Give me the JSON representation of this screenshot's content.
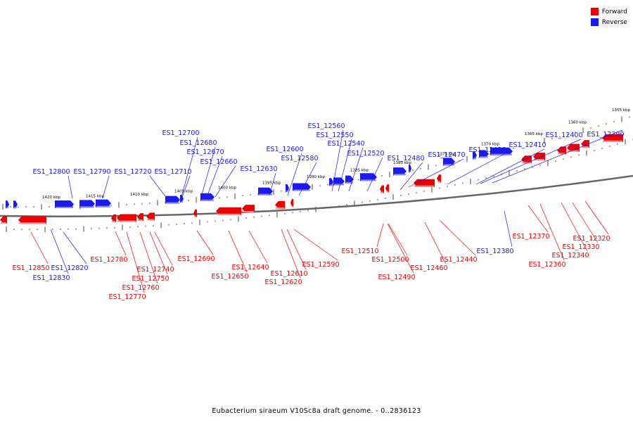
{
  "colors": {
    "forward": "#ee0000",
    "reverse": "#1a1aee",
    "axis": "#666666"
  },
  "legend": [
    {
      "label": "Forward",
      "color": "#ee0000"
    },
    {
      "label": "Reverse",
      "color": "#1a1aee"
    }
  ],
  "caption": "Eubacterium siraeum V10Sc8a draft genome. - 0..2836123",
  "ruler_labels": [
    "1420 kbp",
    "1415 kbp",
    "1410 kbp",
    "1405 kbp",
    "1400 kbp",
    "1395 kbp",
    "1390 kbp",
    "1385 kbp",
    "1380 kbp",
    "1375 kbp",
    "1370 kbp",
    "1365 kbp",
    "1360 kbp",
    "1355 kbp"
  ],
  "reverse_genes": [
    "ES1_12800",
    "ES1_12790",
    "ES1_12720",
    "ES1_12710",
    "ES1_12700",
    "ES1_12680",
    "ES1_12670",
    "ES1_12660",
    "ES1_12630",
    "ES1_12600",
    "ES1_12580",
    "ES1_12560",
    "ES1_12550",
    "ES1_12540",
    "ES1_12520",
    "ES1_12480",
    "ES1_12470",
    "ES1_12430",
    "ES1_12410",
    "ES1_12400",
    "ES1_12390",
    "ES1_12380",
    "ES1_12820",
    "ES1_12830"
  ],
  "forward_genes": [
    "ES1_12850",
    "ES1_12780",
    "ES1_12740",
    "ES1_12750",
    "ES1_12760",
    "ES1_12770",
    "ES1_12690",
    "ES1_12640",
    "ES1_12650",
    "ES1_12610",
    "ES1_12620",
    "ES1_12590",
    "ES1_12510",
    "ES1_12500",
    "ES1_12490",
    "ES1_12460",
    "ES1_12440",
    "ES1_12370",
    "ES1_12360",
    "ES1_12340",
    "ES1_12330",
    "ES1_12320"
  ]
}
